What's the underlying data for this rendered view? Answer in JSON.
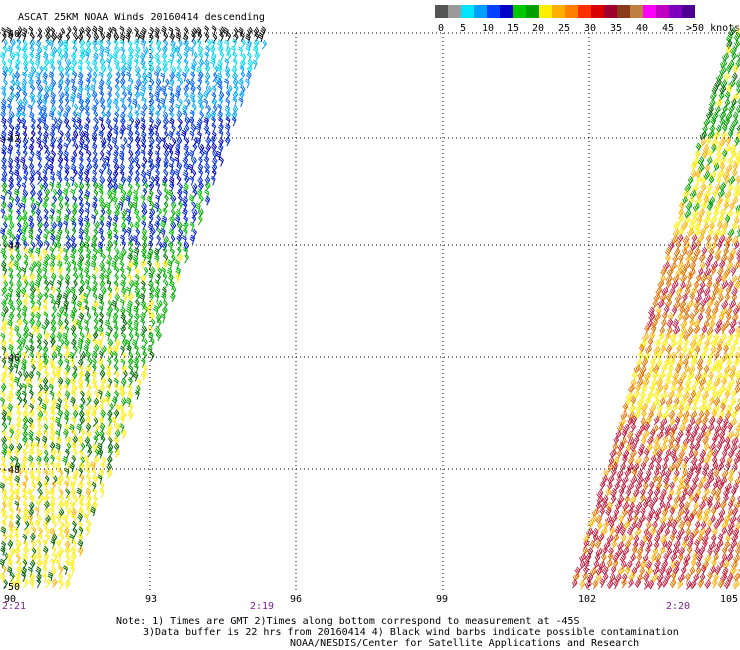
{
  "title": "ASCAT 25KM NOAA Winds 20160414 descending",
  "legend": {
    "colors": [
      "#555555",
      "#9a9a9a",
      "#00e5ff",
      "#00a0ff",
      "#0040ff",
      "#0000c8",
      "#00c800",
      "#00a000",
      "#ffee00",
      "#ffb000",
      "#ff8000",
      "#ff3000",
      "#d80000",
      "#a00030",
      "#8b3a1a",
      "#c08040",
      "#ff00ff",
      "#c000c0",
      "#8000c0",
      "#500090"
    ],
    "labels": [
      "0",
      "5",
      "10",
      "15",
      "20",
      "25",
      "30",
      "35",
      "40",
      "45",
      ">50 knots"
    ]
  },
  "lat_labels": [
    "-40",
    "-42",
    "-44",
    "-46",
    "-48",
    "-50"
  ],
  "lon_labels": [
    "90",
    "93",
    "96",
    "99",
    "102",
    "105"
  ],
  "times": [
    "2:21",
    "2:19",
    "2:20"
  ],
  "notes": {
    "line1": "Note: 1) Times are GMT 2)Times along bottom correspond to measurement at -45S",
    "line2": "3)Data buffer is 22 hrs from 20160414 4) Black wind barbs indicate possible contamination",
    "line3": "NOAA/NESDIS/Center for Satellite Applications and Research"
  }
}
